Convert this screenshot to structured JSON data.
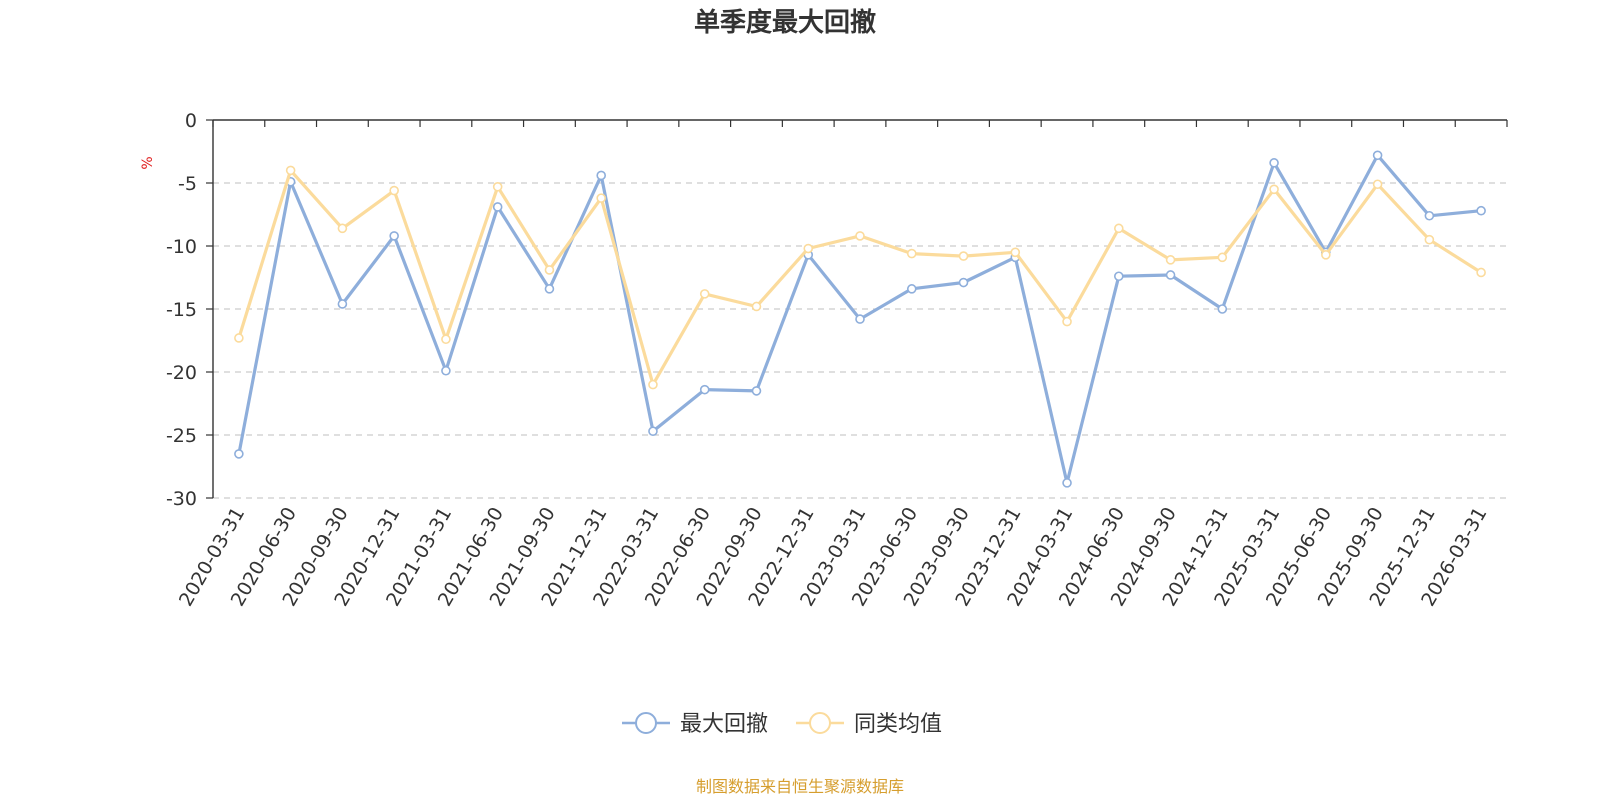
{
  "chart_data": {
    "type": "line",
    "title": "单季度最大回撤",
    "ylabel": "%",
    "ylim": [
      -30,
      0
    ],
    "yticks": [
      0,
      -5,
      -10,
      -15,
      -20,
      -25,
      -30
    ],
    "grid": "horizontal-dashed",
    "legend_position": "bottom-center",
    "categories": [
      "2020-03-31",
      "2020-06-30",
      "2020-09-30",
      "2020-12-31",
      "2021-03-31",
      "2021-06-30",
      "2021-09-30",
      "2021-12-31",
      "2022-03-31",
      "2022-06-30",
      "2022-09-30",
      "2022-12-31",
      "2023-03-31",
      "2023-06-30",
      "2023-09-30",
      "2023-12-31",
      "2024-03-31",
      "2024-06-30",
      "2024-09-30",
      "2024-12-31",
      "2025-03-31",
      "2025-06-30",
      "2025-09-30",
      "2025-12-31",
      "2026-03-31"
    ],
    "series": [
      {
        "name": "最大回撤",
        "color": "#8eaedb",
        "values": [
          -26.5,
          -4.9,
          -14.6,
          -9.2,
          -19.9,
          -6.9,
          -13.4,
          -4.4,
          -24.7,
          -21.4,
          -21.5,
          -10.7,
          -15.8,
          -13.4,
          -12.9,
          -10.9,
          -28.8,
          -12.4,
          -12.3,
          -15.0,
          -3.4,
          -10.5,
          -2.8,
          -7.6,
          -7.2
        ]
      },
      {
        "name": "同类均值",
        "color": "#fbdb9c",
        "values": [
          -17.3,
          -4.0,
          -8.6,
          -5.6,
          -17.4,
          -5.3,
          -11.9,
          -6.2,
          -21.0,
          -13.8,
          -14.8,
          -10.2,
          -9.2,
          -10.6,
          -10.8,
          -10.5,
          -16.0,
          -8.6,
          -11.1,
          -10.9,
          -5.5,
          -10.7,
          -5.1,
          -9.5,
          -12.1
        ]
      }
    ]
  },
  "footer": {
    "source": "制图数据来自恒生聚源数据库",
    "source_color": "#d69e2e"
  },
  "unit_color": "#e02020"
}
